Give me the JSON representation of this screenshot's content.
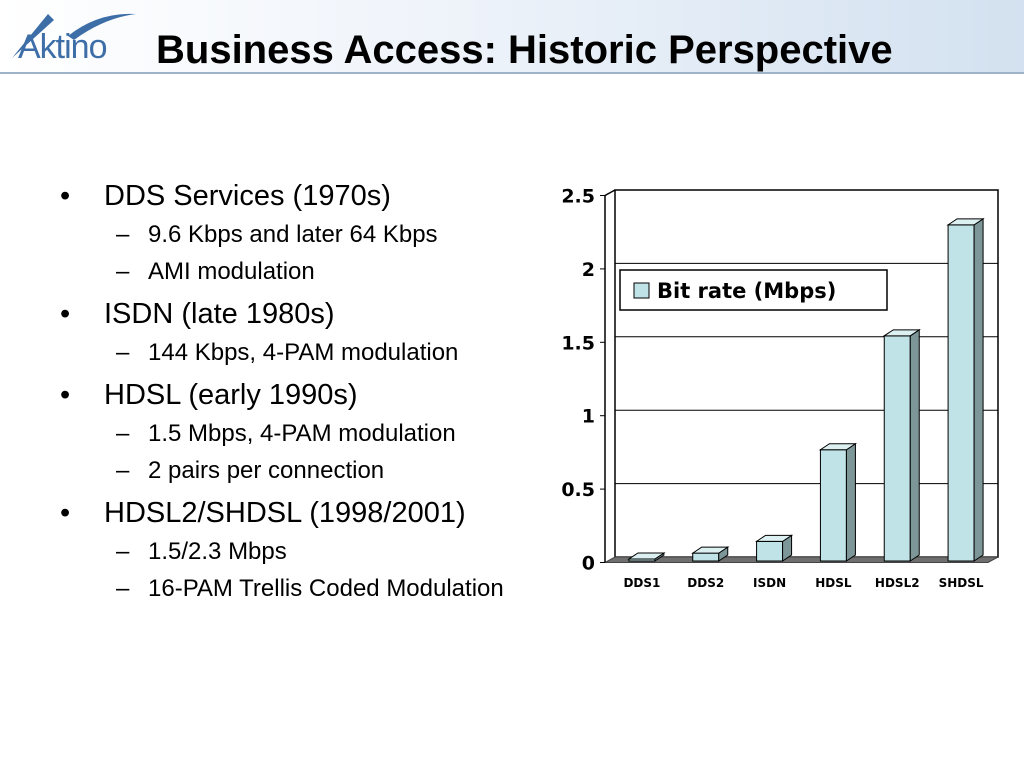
{
  "header": {
    "logo_text": "Aktino",
    "title": "Business Access: Historic Perspective"
  },
  "colors": {
    "accent": "#3d6ea8",
    "bar_fill": "#bfe3e6",
    "bar_side": "#7d9698",
    "bar_top": "#dcf0f2"
  },
  "bullets": [
    {
      "text": "DDS Services (1970s)",
      "subs": [
        "9.6 Kbps and later 64 Kbps",
        "AMI modulation"
      ]
    },
    {
      "text": "ISDN (late 1980s)",
      "subs": [
        "144 Kbps, 4-PAM modulation"
      ]
    },
    {
      "text": "HDSL (early 1990s)",
      "subs": [
        "1.5 Mbps, 4-PAM modulation",
        "2 pairs per connection"
      ]
    },
    {
      "text": "HDSL2/SHDSL (1998/2001)",
      "subs": [
        "1.5/2.3 Mbps",
        "16-PAM Trellis Coded Modulation"
      ]
    }
  ],
  "chart_data": {
    "type": "bar",
    "title": "",
    "xlabel": "",
    "ylabel": "",
    "categories": [
      "DDS1",
      "DDS2",
      "ISDN",
      "HDSL",
      "HDSL2",
      "SHDSL"
    ],
    "series": [
      {
        "name": "Bit rate (Mbps)",
        "values": [
          0.0096,
          0.064,
          0.144,
          0.768,
          1.544,
          2.3
        ]
      }
    ],
    "ylim": [
      0,
      2.5
    ],
    "yticks": [
      0,
      0.5,
      1,
      1.5,
      2,
      2.5
    ],
    "grid": true,
    "legend": "top-left"
  }
}
